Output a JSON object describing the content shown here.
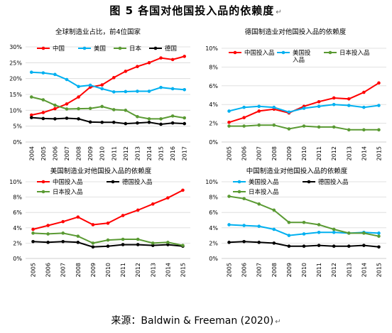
{
  "figure": {
    "title": "图 5 各国对他国投入品的依赖度",
    "source": "来源：Baldwin & Freeman (2020)",
    "return_mark": "↵"
  },
  "colors": {
    "china": "#ff0000",
    "us": "#00b0f0",
    "japan": "#5a9a33",
    "germany": "#000000",
    "grid": "#d9d9d9",
    "axis": "#bfbfbf"
  },
  "chart_data": [
    {
      "type": "line",
      "title": "全球制造业占比，前4位国家",
      "x": [
        "2004",
        "2005",
        "2006",
        "2007",
        "2008",
        "2009",
        "2010",
        "2011",
        "2012",
        "2013",
        "2014",
        "2015",
        "2016",
        "2017"
      ],
      "ylim": [
        0,
        30
      ],
      "yticks": [
        "0%",
        "5%",
        "10%",
        "15%",
        "20%",
        "25%",
        "30%"
      ],
      "ytick_values": [
        0,
        5,
        10,
        15,
        20,
        25,
        30
      ],
      "grid": true,
      "legend_placement": "top",
      "series": [
        {
          "name": "中国",
          "color_key": "china",
          "values": [
            8.5,
            9.3,
            10.5,
            12.0,
            14.2,
            17.3,
            18.0,
            20.3,
            22.3,
            23.8,
            25.0,
            26.5,
            26.0,
            27.0
          ]
        },
        {
          "name": "美国",
          "color_key": "us",
          "values": [
            22.0,
            21.8,
            21.3,
            19.7,
            17.5,
            17.9,
            16.8,
            15.8,
            15.9,
            16.0,
            16.0,
            17.2,
            16.8,
            16.5
          ]
        },
        {
          "name": "日本",
          "color_key": "japan",
          "values": [
            14.2,
            13.3,
            11.6,
            10.4,
            10.5,
            10.6,
            11.2,
            10.2,
            10.0,
            8.0,
            7.3,
            7.3,
            8.2,
            7.6
          ]
        },
        {
          "name": "德国",
          "color_key": "germany",
          "values": [
            7.7,
            7.4,
            7.3,
            7.5,
            7.3,
            6.3,
            6.2,
            6.2,
            5.8,
            6.0,
            6.2,
            5.6,
            6.0,
            5.8
          ]
        }
      ]
    },
    {
      "type": "line",
      "title": "德国制造业对他国投入品的依赖度",
      "x": [
        "2005",
        "2006",
        "2007",
        "2008",
        "2009",
        "2010",
        "2011",
        "2012",
        "2013",
        "2014",
        "2015"
      ],
      "ylim": [
        0,
        10
      ],
      "yticks": [
        "0%",
        "2%",
        "4%",
        "6%",
        "8%",
        "10%"
      ],
      "ytick_values": [
        0,
        2,
        4,
        6,
        8,
        10
      ],
      "grid": true,
      "legend_placement": "top",
      "series": [
        {
          "name": "中国投入品",
          "color_key": "china",
          "values": [
            2.1,
            2.6,
            3.3,
            3.5,
            3.1,
            3.8,
            4.3,
            4.7,
            4.6,
            5.3,
            6.3
          ]
        },
        {
          "name": "美国投入品",
          "color_key": "us",
          "values": [
            3.3,
            3.7,
            3.8,
            3.7,
            3.2,
            3.6,
            3.8,
            4.0,
            3.9,
            3.7,
            3.9
          ]
        },
        {
          "name": "日本投入品",
          "color_key": "japan",
          "values": [
            1.7,
            1.7,
            1.8,
            1.8,
            1.4,
            1.7,
            1.6,
            1.6,
            1.3,
            1.3,
            1.3
          ]
        }
      ]
    },
    {
      "type": "line",
      "title": "美国制造业对他国投入品的依赖度",
      "x": [
        "2005",
        "2006",
        "2007",
        "2008",
        "2009",
        "2010",
        "2011",
        "2012",
        "2013",
        "2014",
        "2015"
      ],
      "ylim": [
        0,
        10
      ],
      "yticks": [
        "0%",
        "2%",
        "4%",
        "6%",
        "8%",
        "10%"
      ],
      "ytick_values": [
        0,
        2,
        4,
        6,
        8,
        10
      ],
      "grid": true,
      "legend_placement": "top-left",
      "series": [
        {
          "name": "中国投入品",
          "color_key": "china",
          "values": [
            3.8,
            4.3,
            4.8,
            5.4,
            4.4,
            4.6,
            5.6,
            6.3,
            7.1,
            7.9,
            8.9
          ]
        },
        {
          "name": "德国投入品",
          "color_key": "germany",
          "values": [
            2.2,
            2.1,
            2.2,
            2.1,
            1.5,
            1.6,
            1.8,
            1.8,
            1.7,
            1.8,
            1.6
          ]
        },
        {
          "name": "日本投入品",
          "color_key": "japan",
          "values": [
            3.3,
            3.2,
            3.3,
            2.9,
            2.0,
            2.4,
            2.5,
            2.5,
            2.0,
            2.1,
            1.7
          ]
        }
      ]
    },
    {
      "type": "line",
      "title": "中国制造业对他国投入品的依赖度",
      "x": [
        "2005",
        "2006",
        "2007",
        "2008",
        "2009",
        "2010",
        "2011",
        "2012",
        "2013",
        "2014",
        "2015"
      ],
      "ylim": [
        0,
        10
      ],
      "yticks": [
        "0%",
        "2%",
        "4%",
        "6%",
        "8%",
        "10%"
      ],
      "ytick_values": [
        0,
        2,
        4,
        6,
        8,
        10
      ],
      "grid": true,
      "legend_placement": "top-left",
      "series": [
        {
          "name": "美国投入品",
          "color_key": "us",
          "values": [
            4.4,
            4.3,
            4.2,
            3.8,
            3.0,
            3.2,
            3.4,
            3.4,
            3.3,
            3.4,
            3.3
          ]
        },
        {
          "name": "德国投入品",
          "color_key": "germany",
          "values": [
            2.1,
            2.2,
            2.1,
            2.0,
            1.6,
            1.6,
            1.7,
            1.6,
            1.6,
            1.7,
            1.5
          ]
        },
        {
          "name": "日本投入品",
          "color_key": "japan",
          "values": [
            8.1,
            7.8,
            7.1,
            6.3,
            4.7,
            4.7,
            4.4,
            3.8,
            3.3,
            3.3,
            2.9
          ]
        }
      ]
    }
  ]
}
